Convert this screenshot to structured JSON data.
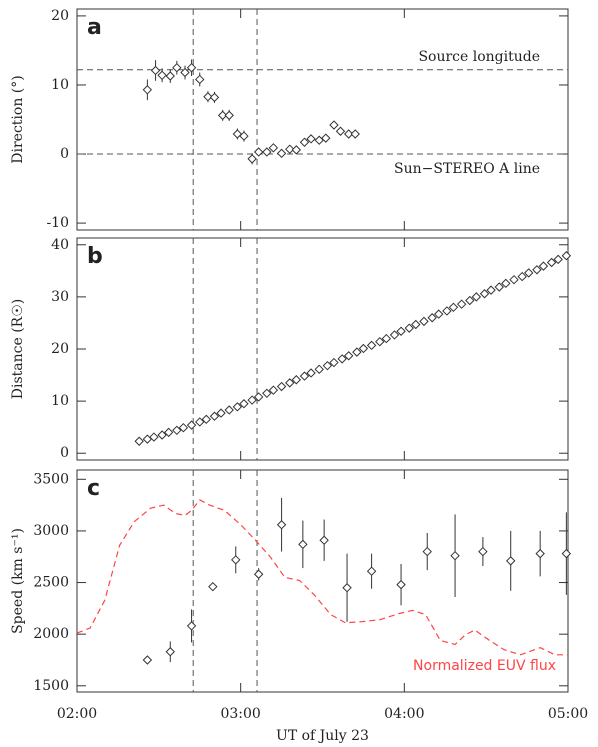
{
  "chart_data": [
    {
      "type": "scatter",
      "panel_label": "a",
      "ylabel": "Direction (°)",
      "xlim": [
        2,
        5
      ],
      "xticks": [
        2,
        3,
        4,
        5
      ],
      "ylim": [
        -11,
        21
      ],
      "yticks": [
        -10,
        0,
        10,
        20
      ],
      "vlines": [
        2.71,
        3.1
      ],
      "hlines": [
        {
          "value": 12.2,
          "label": "Source longitude"
        },
        {
          "value": 0,
          "label": "Sun−STEREO A line"
        }
      ],
      "color": "#333333",
      "marker": "diamond",
      "x": [
        2.43,
        2.48,
        2.52,
        2.57,
        2.61,
        2.66,
        2.7,
        2.75,
        2.8,
        2.84,
        2.89,
        2.93,
        2.98,
        3.02,
        3.07,
        3.11,
        3.16,
        3.2,
        3.25,
        3.3,
        3.34,
        3.39,
        3.43,
        3.48,
        3.52,
        3.57,
        3.61,
        3.66,
        3.7
      ],
      "values": [
        9.3,
        12.1,
        11.4,
        11.3,
        12.5,
        11.8,
        12.5,
        10.8,
        8.3,
        8.2,
        5.6,
        5.6,
        2.9,
        2.6,
        -0.7,
        0.3,
        0.3,
        0.9,
        0.1,
        0.7,
        0.6,
        1.7,
        2.2,
        2.0,
        2.3,
        4.2,
        3.3,
        2.9,
        2.9
      ],
      "errors": [
        1.5,
        1.5,
        1.0,
        1.0,
        1.0,
        1.0,
        1.2,
        1.0,
        0.8,
        0.8,
        0.8,
        0.8,
        0.8,
        0.8,
        0.8,
        0.6,
        0.6,
        0.6,
        0.6,
        0.6,
        0.6,
        0.6,
        0.6,
        0.6,
        0.6,
        0.6,
        0.6,
        0.6,
        0.6
      ]
    },
    {
      "type": "scatter",
      "panel_label": "b",
      "ylabel": "Distance (R☉)",
      "xlim": [
        2,
        5
      ],
      "xticks": [
        2,
        3,
        4,
        5
      ],
      "ylim": [
        -1.3,
        41.3
      ],
      "yticks": [
        0,
        10,
        20,
        30,
        40
      ],
      "vlines": [
        2.71,
        3.1
      ],
      "color": "#333333",
      "marker": "diamond",
      "x": [
        2.38,
        2.43,
        2.47,
        2.52,
        2.56,
        2.61,
        2.65,
        2.7,
        2.75,
        2.79,
        2.84,
        2.88,
        2.93,
        2.98,
        3.02,
        3.07,
        3.11,
        3.16,
        3.2,
        3.25,
        3.3,
        3.34,
        3.39,
        3.43,
        3.48,
        3.53,
        3.57,
        3.62,
        3.66,
        3.71,
        3.75,
        3.8,
        3.85,
        3.89,
        3.94,
        3.98,
        4.03,
        4.07,
        4.12,
        4.17,
        4.21,
        4.26,
        4.3,
        4.35,
        4.4,
        4.44,
        4.49,
        4.53,
        4.58,
        4.62,
        4.67,
        4.72,
        4.76,
        4.81,
        4.85,
        4.9,
        4.94,
        4.99
      ],
      "values": [
        2.3,
        2.7,
        3.1,
        3.5,
        4.0,
        4.4,
        4.9,
        5.4,
        6.0,
        6.5,
        7.1,
        7.7,
        8.3,
        8.9,
        9.5,
        10.2,
        10.8,
        11.5,
        12.1,
        12.8,
        13.5,
        14.1,
        14.8,
        15.4,
        16.1,
        16.8,
        17.4,
        18.1,
        18.7,
        19.4,
        20.1,
        20.7,
        21.4,
        22.0,
        22.7,
        23.4,
        24.0,
        24.7,
        25.3,
        26.0,
        26.7,
        27.3,
        28.0,
        28.6,
        29.3,
        30.0,
        30.6,
        31.3,
        31.9,
        32.6,
        33.3,
        33.9,
        34.6,
        35.2,
        35.9,
        36.6,
        37.2,
        37.9
      ]
    },
    {
      "type": "scatter",
      "panel_label": "c",
      "ylabel": "Speed (km s⁻¹)",
      "xlabel": "UT of July 23",
      "xlim": [
        2,
        5
      ],
      "xticks": [
        {
          "value": 2,
          "label": "02:00"
        },
        {
          "value": 3,
          "label": "03:00"
        },
        {
          "value": 4,
          "label": "04:00"
        },
        {
          "value": 5,
          "label": "05:00"
        }
      ],
      "ylim": [
        1440,
        3590
      ],
      "yticks": [
        1500,
        2000,
        2500,
        3000,
        3500
      ],
      "vlines": [
        2.71,
        3.1
      ],
      "color": "#333333",
      "marker": "diamond",
      "x": [
        2.43,
        2.57,
        2.7,
        2.83,
        2.97,
        3.11,
        3.25,
        3.38,
        3.51,
        3.65,
        3.8,
        3.98,
        4.14,
        4.31,
        4.48,
        4.65,
        4.83,
        4.99
      ],
      "values": [
        1750,
        1830,
        2080,
        2460,
        2720,
        2580,
        3060,
        2870,
        2910,
        2450,
        2610,
        2480,
        2800,
        2760,
        2800,
        2710,
        2780,
        2780
      ],
      "errors": [
        30,
        100,
        160,
        40,
        130,
        60,
        260,
        230,
        200,
        330,
        170,
        200,
        180,
        400,
        140,
        290,
        220,
        400
      ],
      "curve": {
        "name": "Normalized EUV flux",
        "color": "#ff4444",
        "x": [
          2.0,
          2.08,
          2.17,
          2.26,
          2.35,
          2.45,
          2.53,
          2.6,
          2.66,
          2.7,
          2.75,
          2.81,
          2.9,
          3.0,
          3.09,
          3.18,
          3.27,
          3.36,
          3.45,
          3.55,
          3.64,
          3.73,
          3.85,
          3.97,
          4.05,
          4.13,
          4.22,
          4.31,
          4.37,
          4.43,
          4.52,
          4.61,
          4.71,
          4.83,
          4.92,
          5.0
        ],
        "values": [
          2010,
          2060,
          2330,
          2860,
          3090,
          3220,
          3250,
          3170,
          3150,
          3200,
          3300,
          3250,
          3200,
          3060,
          2910,
          2750,
          2550,
          2520,
          2380,
          2190,
          2110,
          2120,
          2140,
          2200,
          2230,
          2190,
          1940,
          1900,
          1990,
          2040,
          1940,
          1850,
          1800,
          1870,
          1800,
          1800
        ]
      }
    }
  ]
}
